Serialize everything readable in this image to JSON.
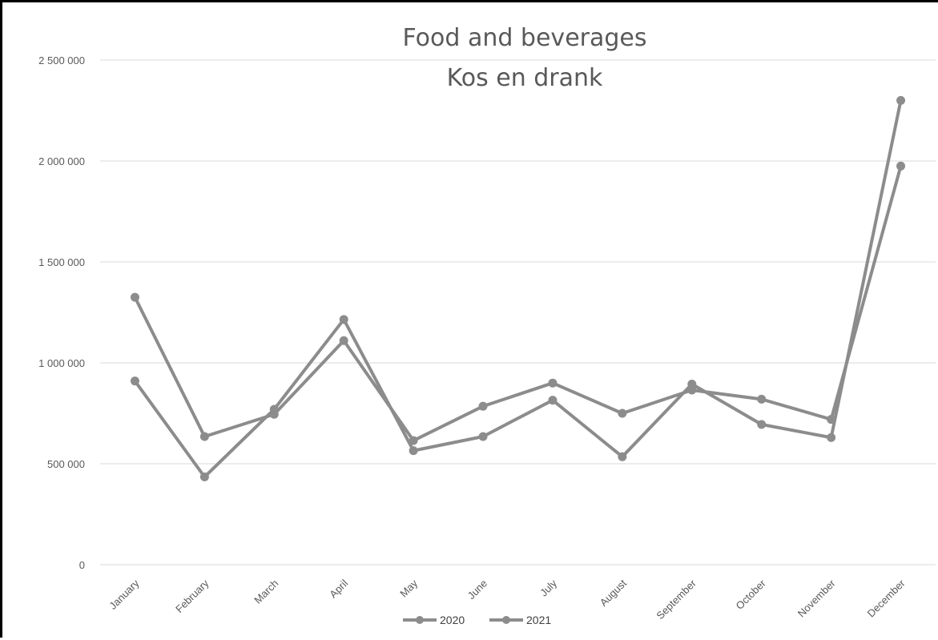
{
  "chart_data": {
    "type": "line",
    "title": "Food and beverages",
    "subtitle": "Kos en drank",
    "categories": [
      "January",
      "February",
      "March",
      "April",
      "May",
      "June",
      "July",
      "August",
      "September",
      "October",
      "November",
      "December"
    ],
    "series": [
      {
        "name": "2020",
        "values": [
          1325000,
          635000,
          745000,
          1110000,
          615000,
          785000,
          900000,
          750000,
          865000,
          820000,
          720000,
          1975000
        ]
      },
      {
        "name": "2021",
        "values": [
          910000,
          435000,
          770000,
          1215000,
          565000,
          635000,
          815000,
          535000,
          895000,
          695000,
          630000,
          2300000
        ]
      }
    ],
    "ylim": [
      0,
      2500000
    ],
    "yticks": [
      0,
      500000,
      1000000,
      1500000,
      2000000,
      2500000
    ],
    "ytick_labels": [
      "0",
      "500 000",
      "1 000 000",
      "1 500 000",
      "2 000 000",
      "2 500 000"
    ],
    "xlabel": "",
    "ylabel": "",
    "grid": true,
    "legend": "bottom",
    "colors": {
      "series": "#8c8c8c",
      "grid": "#d9d9d9",
      "text": "#595959"
    }
  }
}
